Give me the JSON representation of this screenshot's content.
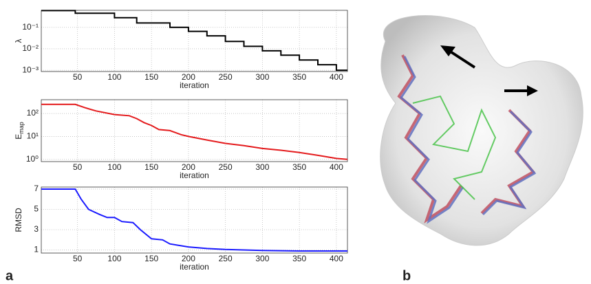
{
  "chart_data": [
    {
      "type": "line",
      "ylabel": "λ",
      "xlabel": "iteration",
      "log_y": true,
      "grid": true,
      "xlim": [
        1,
        415
      ],
      "xticks": [
        50,
        100,
        150,
        200,
        250,
        300,
        350,
        400
      ],
      "ylim": [
        0.00087,
        0.62
      ],
      "yticks": [
        {
          "value": 0.001,
          "label": "10⁻³"
        },
        {
          "value": 0.01,
          "label": "10⁻²"
        },
        {
          "value": 0.1,
          "label": "10⁻¹"
        }
      ],
      "series": [
        {
          "color": "#000000",
          "x": [
            1,
            47,
            47,
            100,
            100,
            130,
            130,
            175,
            175,
            200,
            200,
            225,
            225,
            250,
            250,
            275,
            275,
            300,
            300,
            325,
            325,
            350,
            350,
            375,
            375,
            400,
            400,
            415
          ],
          "values": [
            0.6,
            0.6,
            0.45,
            0.45,
            0.28,
            0.28,
            0.16,
            0.16,
            0.1,
            0.1,
            0.065,
            0.065,
            0.04,
            0.04,
            0.022,
            0.022,
            0.013,
            0.013,
            0.008,
            0.008,
            0.005,
            0.005,
            0.003,
            0.003,
            0.0018,
            0.0018,
            0.001,
            0.001
          ]
        }
      ]
    },
    {
      "type": "line",
      "ylabel": "E",
      "ylabel_sub": "map",
      "xlabel": "iteration",
      "log_y": true,
      "grid": true,
      "xlim": [
        1,
        415
      ],
      "xticks": [
        50,
        100,
        150,
        200,
        250,
        300,
        350,
        400
      ],
      "ylim": [
        0.8,
        400
      ],
      "yticks": [
        {
          "value": 1,
          "label": "10⁰"
        },
        {
          "value": 10,
          "label": "10¹"
        },
        {
          "value": 100,
          "label": "10²"
        }
      ],
      "series": [
        {
          "color": "#e41a1c",
          "x": [
            1,
            47,
            60,
            75,
            100,
            120,
            130,
            140,
            150,
            160,
            175,
            190,
            200,
            225,
            250,
            275,
            300,
            325,
            350,
            375,
            400,
            415
          ],
          "values": [
            250,
            250,
            180,
            130,
            90,
            80,
            60,
            40,
            30,
            20,
            18,
            12,
            10,
            7,
            5,
            4,
            3,
            2.5,
            2,
            1.5,
            1.1,
            1
          ]
        }
      ]
    },
    {
      "type": "line",
      "ylabel": "RMSD",
      "xlabel": "iteration",
      "log_y": false,
      "grid": true,
      "xlim": [
        1,
        415
      ],
      "xticks": [
        50,
        100,
        150,
        200,
        250,
        300,
        350,
        400
      ],
      "ylim": [
        0.7,
        7.2
      ],
      "yticks": [
        1,
        3,
        5,
        7
      ],
      "series": [
        {
          "color": "#1a1aff",
          "x": [
            1,
            47,
            55,
            65,
            80,
            90,
            100,
            110,
            125,
            135,
            150,
            165,
            175,
            200,
            225,
            250,
            300,
            350,
            415
          ],
          "values": [
            7.0,
            7.0,
            6.0,
            5.0,
            4.5,
            4.2,
            4.2,
            3.8,
            3.7,
            3.0,
            2.1,
            2.0,
            1.6,
            1.3,
            1.15,
            1.05,
            0.95,
            0.9,
            0.9
          ]
        }
      ]
    }
  ],
  "panels": [
    "a",
    "b"
  ]
}
